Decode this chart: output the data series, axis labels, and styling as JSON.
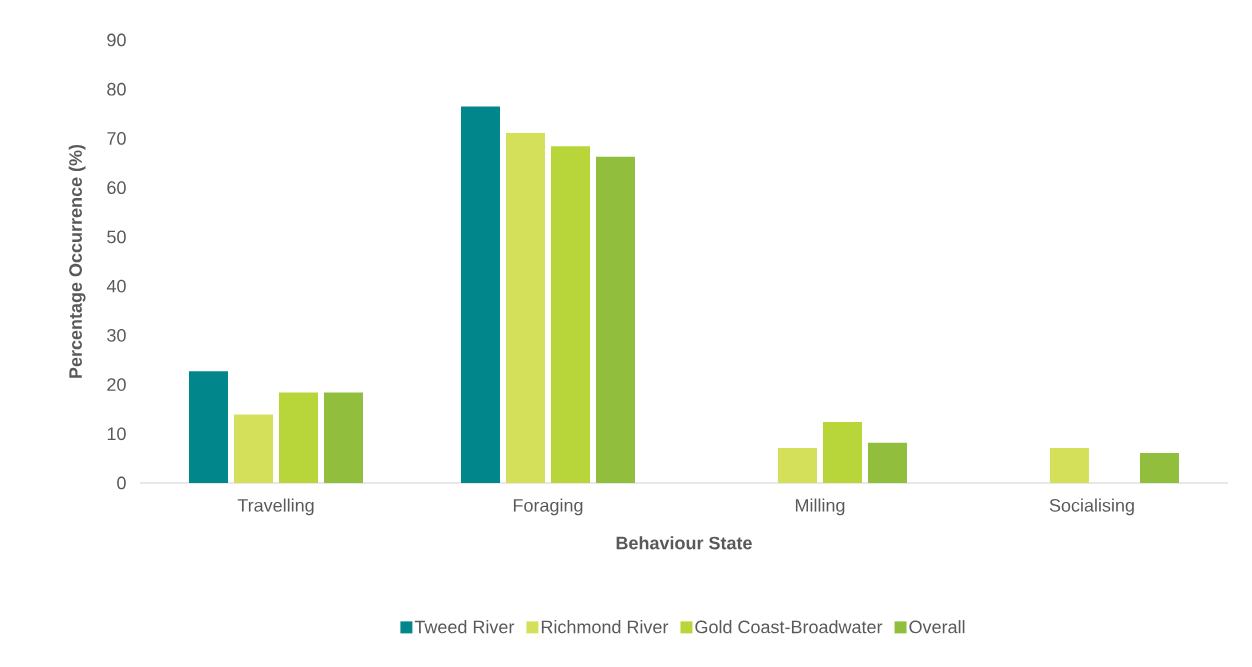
{
  "chart_data": {
    "type": "bar",
    "xlabel": "Behaviour State",
    "ylabel": "Percentage Occurrence (%)",
    "categories": [
      "Travelling",
      "Foraging",
      "Milling",
      "Socialising"
    ],
    "series": [
      {
        "name": "Tweed River",
        "color": "#00868b",
        "values": [
          22.7,
          76.5,
          0,
          0
        ]
      },
      {
        "name": "Richmond River",
        "color": "#d4e05a",
        "values": [
          13.9,
          71.1,
          7.1,
          7.1
        ]
      },
      {
        "name": "Gold Coast-Broadwater",
        "color": "#b8d63a",
        "values": [
          18.4,
          68.4,
          12.4,
          0
        ]
      },
      {
        "name": "Overall",
        "color": "#92be3e",
        "values": [
          18.4,
          66.3,
          8.2,
          6.1
        ]
      }
    ],
    "ylim": [
      0,
      90
    ],
    "yticks": [
      0,
      10,
      20,
      30,
      40,
      50,
      60,
      70,
      80,
      90
    ],
    "legend": "bottom"
  }
}
